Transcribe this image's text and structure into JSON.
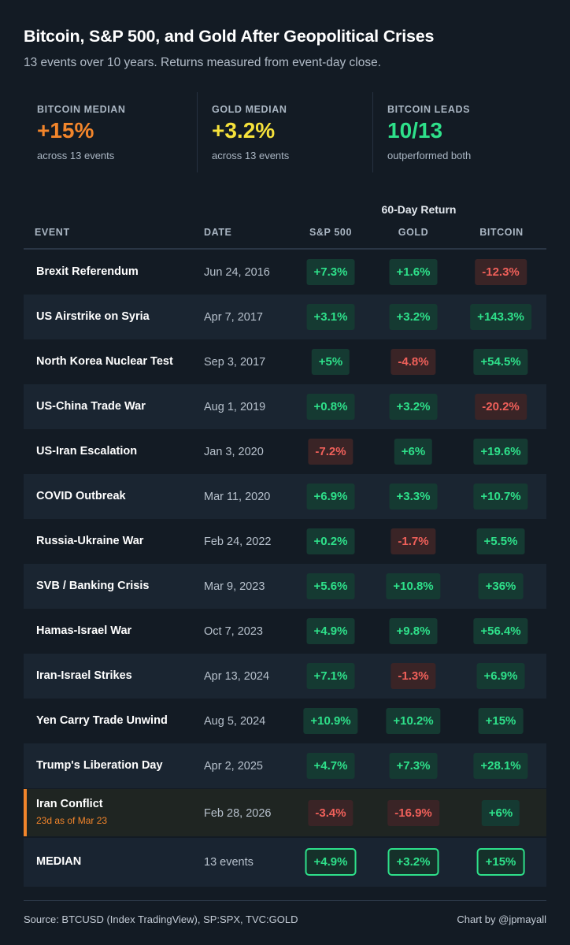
{
  "header": {
    "title": "Bitcoin, S&P 500, and Gold After Geopolitical Crises",
    "subtitle": "13 events over 10 years. Returns measured from event-day close."
  },
  "stats": [
    {
      "label": "BITCOIN MEDIAN",
      "value": "+15%",
      "sub": "across 13 events",
      "color": "#f2852b"
    },
    {
      "label": "GOLD MEDIAN",
      "value": "+3.2%",
      "sub": "across 13 events",
      "color": "#f6e23b"
    },
    {
      "label": "BITCOIN LEADS",
      "value": "10/13",
      "sub": "outperformed both",
      "color": "#2ee08a"
    }
  ],
  "table": {
    "group_header": "60-Day Return",
    "columns": [
      "EVENT",
      "DATE",
      "S&P 500",
      "GOLD",
      "BITCOIN"
    ],
    "median_row": {
      "event": "MEDIAN",
      "date": "13 events",
      "sp500": "+4.9%",
      "gold": "+3.2%",
      "bitcoin": "+15%"
    }
  },
  "chart_data": {
    "type": "table",
    "title": "Bitcoin, S&P 500, and Gold After Geopolitical Crises",
    "subtitle": "13 events over 10 years. Returns measured from event-day close.",
    "metric": "60-Day Return",
    "series_names": [
      "S&P 500",
      "GOLD",
      "BITCOIN"
    ],
    "rows": [
      {
        "event": "Brexit Referendum",
        "date": "Jun 24, 2016",
        "sp500": "+7.3%",
        "gold": "+1.6%",
        "bitcoin": "-12.3%"
      },
      {
        "event": "US Airstrike on Syria",
        "date": "Apr 7, 2017",
        "sp500": "+3.1%",
        "gold": "+3.2%",
        "bitcoin": "+143.3%"
      },
      {
        "event": "North Korea Nuclear Test",
        "date": "Sep 3, 2017",
        "sp500": "+5%",
        "gold": "-4.8%",
        "bitcoin": "+54.5%"
      },
      {
        "event": "US-China Trade War",
        "date": "Aug 1, 2019",
        "sp500": "+0.8%",
        "gold": "+3.2%",
        "bitcoin": "-20.2%"
      },
      {
        "event": "US-Iran Escalation",
        "date": "Jan 3, 2020",
        "sp500": "-7.2%",
        "gold": "+6%",
        "bitcoin": "+19.6%"
      },
      {
        "event": "COVID Outbreak",
        "date": "Mar 11, 2020",
        "sp500": "+6.9%",
        "gold": "+3.3%",
        "bitcoin": "+10.7%"
      },
      {
        "event": "Russia-Ukraine War",
        "date": "Feb 24, 2022",
        "sp500": "+0.2%",
        "gold": "-1.7%",
        "bitcoin": "+5.5%"
      },
      {
        "event": "SVB / Banking Crisis",
        "date": "Mar 9, 2023",
        "sp500": "+5.6%",
        "gold": "+10.8%",
        "bitcoin": "+36%"
      },
      {
        "event": "Hamas-Israel War",
        "date": "Oct 7, 2023",
        "sp500": "+4.9%",
        "gold": "+9.8%",
        "bitcoin": "+56.4%"
      },
      {
        "event": "Iran-Israel Strikes",
        "date": "Apr 13, 2024",
        "sp500": "+7.1%",
        "gold": "-1.3%",
        "bitcoin": "+6.9%"
      },
      {
        "event": "Yen Carry Trade Unwind",
        "date": "Aug 5, 2024",
        "sp500": "+10.9%",
        "gold": "+10.2%",
        "bitcoin": "+15%"
      },
      {
        "event": "Trump's Liberation Day",
        "date": "Apr 2, 2025",
        "sp500": "+4.7%",
        "gold": "+7.3%",
        "bitcoin": "+28.1%"
      },
      {
        "event": "Iran Conflict",
        "date": "Feb 28, 2026",
        "note": "23d as of Mar 23",
        "highlight": true,
        "sp500": "-3.4%",
        "gold": "-16.9%",
        "bitcoin": "+6%"
      }
    ]
  },
  "footer": {
    "source": "Source: BTCUSD (Index TradingView), SP:SPX, TVC:GOLD",
    "credit": "Chart by @jpmayall"
  }
}
